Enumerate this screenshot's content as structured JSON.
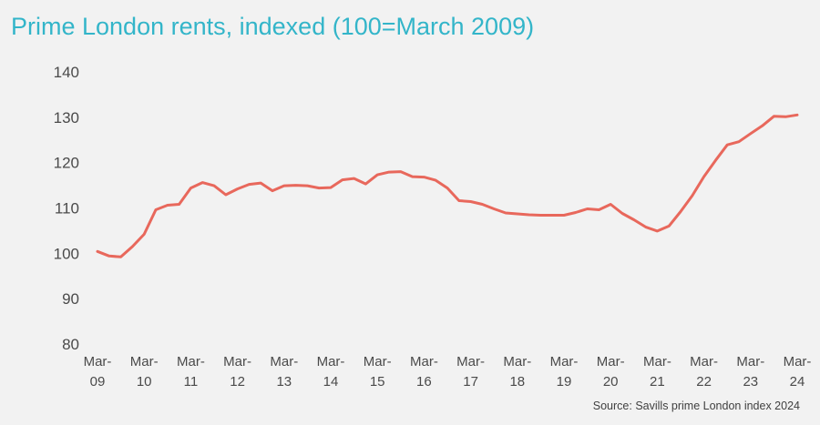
{
  "chart_data": {
    "type": "line",
    "title": "Prime London rents, indexed (100=March 2009)",
    "source": "Source: Savills prime London index 2024",
    "color": "#e8685c",
    "ylim": [
      80,
      140
    ],
    "yticks": [
      80,
      90,
      100,
      110,
      120,
      130,
      140
    ],
    "xlim": [
      0,
      60
    ],
    "xticks": [
      {
        "x": 0,
        "line1": "Mar-",
        "line2": "09"
      },
      {
        "x": 4,
        "line1": "Mar-",
        "line2": "10"
      },
      {
        "x": 8,
        "line1": "Mar-",
        "line2": "11"
      },
      {
        "x": 12,
        "line1": "Mar-",
        "line2": "12"
      },
      {
        "x": 16,
        "line1": "Mar-",
        "line2": "13"
      },
      {
        "x": 20,
        "line1": "Mar-",
        "line2": "14"
      },
      {
        "x": 24,
        "line1": "Mar-",
        "line2": "15"
      },
      {
        "x": 28,
        "line1": "Mar-",
        "line2": "16"
      },
      {
        "x": 32,
        "line1": "Mar-",
        "line2": "17"
      },
      {
        "x": 36,
        "line1": "Mar-",
        "line2": "18"
      },
      {
        "x": 40,
        "line1": "Mar-",
        "line2": "19"
      },
      {
        "x": 44,
        "line1": "Mar-",
        "line2": "20"
      },
      {
        "x": 48,
        "line1": "Mar-",
        "line2": "21"
      },
      {
        "x": 52,
        "line1": "Mar-",
        "line2": "22"
      },
      {
        "x": 56,
        "line1": "Mar-",
        "line2": "23"
      },
      {
        "x": 60,
        "line1": "Mar-",
        "line2": "24"
      }
    ],
    "grid": false,
    "legend": "none",
    "series": [
      {
        "values": [
          100.2,
          99.2,
          99.0,
          101.3,
          104.0,
          109.4,
          110.4,
          110.6,
          114.2,
          115.4,
          114.7,
          112.7,
          114.0,
          115.0,
          115.3,
          113.6,
          114.7,
          114.8,
          114.7,
          114.2,
          114.3,
          116.0,
          116.3,
          115.1,
          117.1,
          117.7,
          117.8,
          116.7,
          116.6,
          115.9,
          114.2,
          111.4,
          111.2,
          110.6,
          109.6,
          108.7,
          108.5,
          108.3,
          108.2,
          108.2,
          108.2,
          108.8,
          109.6,
          109.4,
          110.6,
          108.6,
          107.2,
          105.6,
          104.7,
          105.8,
          109.0,
          112.5,
          116.7,
          120.3,
          123.7,
          124.4,
          126.2,
          127.9,
          130.0,
          129.9,
          130.3
        ]
      }
    ]
  }
}
